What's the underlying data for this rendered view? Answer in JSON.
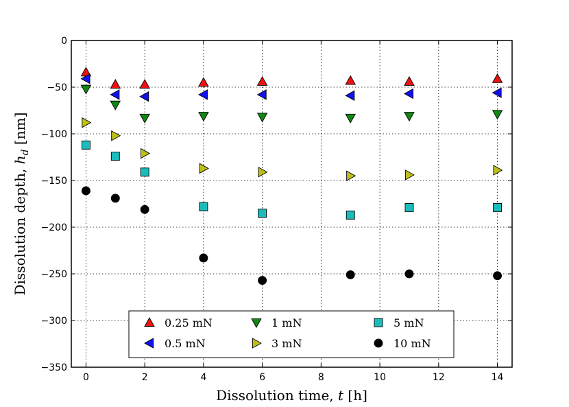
{
  "chart_data": {
    "type": "scatter",
    "xlabel_main": "Dissolution time, ",
    "xlabel_var": "t",
    "xlabel_unit": " [h]",
    "ylabel_main": "Dissolution depth, ",
    "ylabel_var": "h",
    "ylabel_sub": "d",
    "ylabel_unit": " [nm]",
    "xlim": [
      -0.5,
      14.5
    ],
    "ylim": [
      -350,
      0
    ],
    "xticks": [
      0,
      2,
      4,
      6,
      8,
      10,
      12,
      14
    ],
    "yticks": [
      0,
      -50,
      -100,
      -150,
      -200,
      -250,
      -300,
      -350
    ],
    "xtick_labels": [
      "0",
      "2",
      "4",
      "6",
      "8",
      "10",
      "12",
      "14"
    ],
    "ytick_labels": [
      "0",
      "−50",
      "−100",
      "−150",
      "−200",
      "−250",
      "−300",
      "−350"
    ],
    "grid": true,
    "legend_position": "lower center",
    "x": [
      0,
      1,
      2,
      4,
      6,
      9,
      11,
      14
    ],
    "series": [
      {
        "name": "0.25 mN",
        "marker": "triangle-up",
        "color": "#ee1111",
        "values": [
          -34,
          -47,
          -47,
          -45,
          -44,
          -43,
          -44,
          -41
        ]
      },
      {
        "name": "0.5 mN",
        "marker": "triangle-left",
        "color": "#1111ee",
        "values": [
          -41,
          -58,
          -60,
          -58,
          -58,
          -59,
          -57,
          -56
        ]
      },
      {
        "name": "1 mN",
        "marker": "triangle-down",
        "color": "#118811",
        "values": [
          -52,
          -69,
          -83,
          -81,
          -82,
          -83,
          -81,
          -79
        ]
      },
      {
        "name": "3 mN",
        "marker": "triangle-right",
        "color": "#bfbf1a",
        "values": [
          -88,
          -102,
          -121,
          -137,
          -141,
          -145,
          -144,
          -139
        ]
      },
      {
        "name": "5 mN",
        "marker": "square",
        "color": "#1cbcbc",
        "values": [
          -112,
          -124,
          -141,
          -178,
          -185,
          -187,
          -179,
          -179
        ]
      },
      {
        "name": "10 mN",
        "marker": "circle",
        "color": "#000000",
        "values": [
          -161,
          -169,
          -181,
          -233,
          -257,
          -251,
          -250,
          -252
        ]
      }
    ]
  }
}
